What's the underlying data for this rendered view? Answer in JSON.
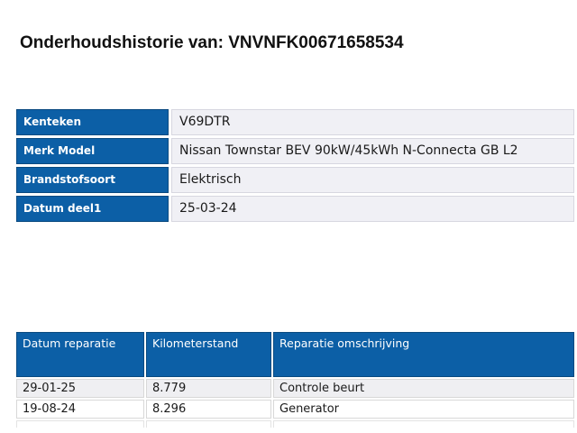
{
  "page_title": "Onderhoudshistorie van: VNVNFK00671658534",
  "colors": {
    "table_header_blue": "#0c5fa6",
    "table_header_border": "#0a4a80",
    "info_value_background": "#f0f0f5",
    "zebra_row_background": "#efeff2"
  },
  "vehicle_info": {
    "rows": [
      {
        "label": "Kenteken",
        "value": "V69DTR"
      },
      {
        "label": "Merk Model",
        "value": "Nissan Townstar BEV 90kW/45kWh N-Connecta GB L2"
      },
      {
        "label": "Brandstofsoort",
        "value": "Elektrisch"
      },
      {
        "label": "Datum deel1",
        "value": "25-03-24"
      }
    ]
  },
  "repair_history": {
    "columns": [
      "Datum reparatie",
      "Kilometerstand",
      "Reparatie omschrijving"
    ],
    "rows": [
      {
        "datum": "29-01-25",
        "kilometerstand": "8.779",
        "omschrijving": "Controle beurt"
      },
      {
        "datum": "19-08-24",
        "kilometerstand": "8.296",
        "omschrijving": "Generator"
      }
    ]
  }
}
